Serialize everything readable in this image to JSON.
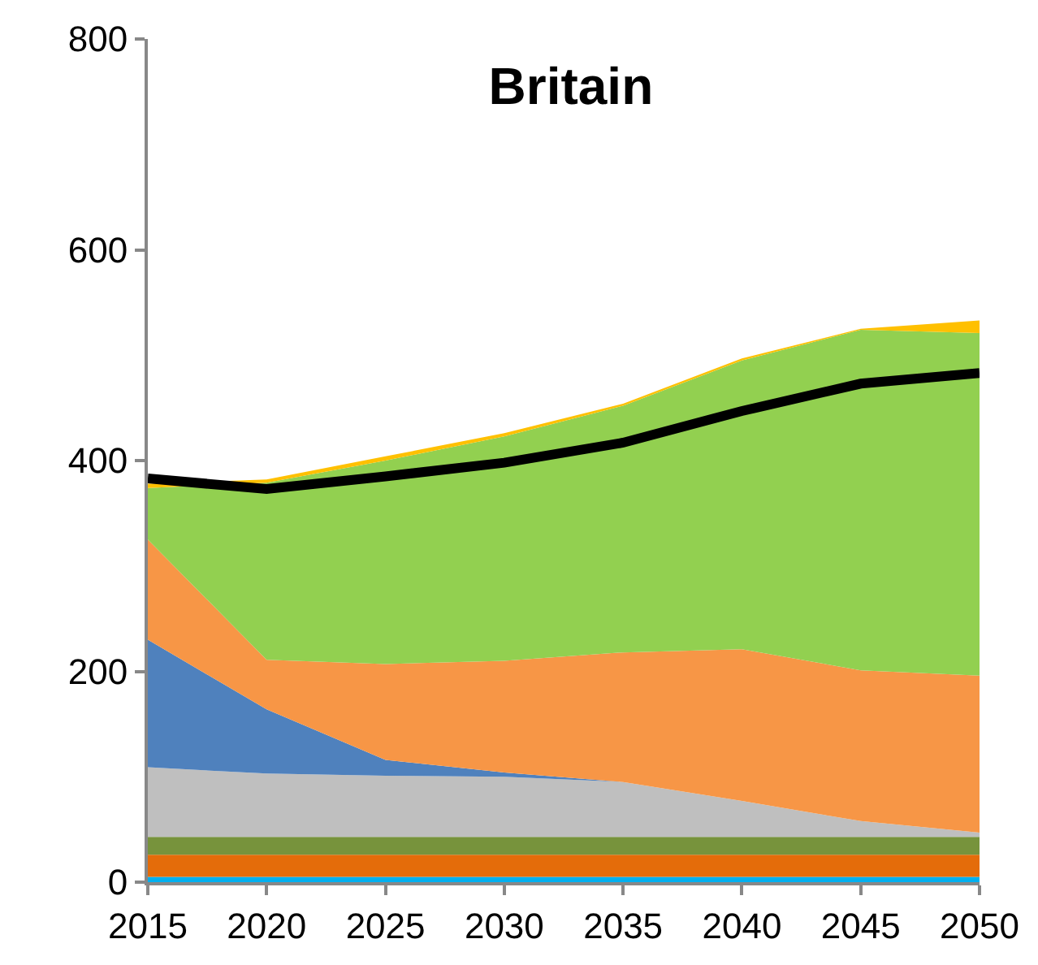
{
  "chart_data": {
    "type": "area",
    "title": "Britain",
    "stacked": true,
    "x": [
      2015,
      2020,
      2025,
      2030,
      2035,
      2040,
      2045,
      2050
    ],
    "xlim": [
      2015,
      2050
    ],
    "xticks": [
      2015,
      2020,
      2025,
      2030,
      2035,
      2040,
      2045,
      2050
    ],
    "ylim": [
      0,
      800
    ],
    "yticks": [
      0,
      200,
      400,
      600,
      800
    ],
    "series": [
      {
        "color": "#00b0f0",
        "values": [
          5,
          5,
          5,
          5,
          5,
          5,
          5,
          5
        ]
      },
      {
        "color": "#e46c0a",
        "values": [
          21,
          21,
          21,
          21,
          21,
          21,
          21,
          21
        ]
      },
      {
        "color": "#77933c",
        "values": [
          17,
          17,
          17,
          17,
          17,
          17,
          17,
          17
        ]
      },
      {
        "color": "#bfbfbf",
        "values": [
          66,
          60,
          58,
          57,
          52,
          34,
          15,
          4
        ]
      },
      {
        "color": "#4f81bd",
        "values": [
          121,
          61,
          15,
          4,
          0,
          0,
          0,
          0
        ]
      },
      {
        "color": "#f79646",
        "values": [
          95,
          47,
          91,
          106,
          123,
          144,
          143,
          149
        ]
      },
      {
        "color": "#92d050",
        "values": [
          49,
          168,
          193,
          213,
          234,
          274,
          323,
          325
        ]
      },
      {
        "color": "#ffc000",
        "values": [
          4,
          3,
          4,
          3,
          2,
          2,
          1,
          12
        ]
      },
      {
        "type": "line",
        "color": "#000000",
        "values": [
          383,
          373,
          385,
          398,
          417,
          447,
          473,
          483
        ]
      }
    ]
  }
}
